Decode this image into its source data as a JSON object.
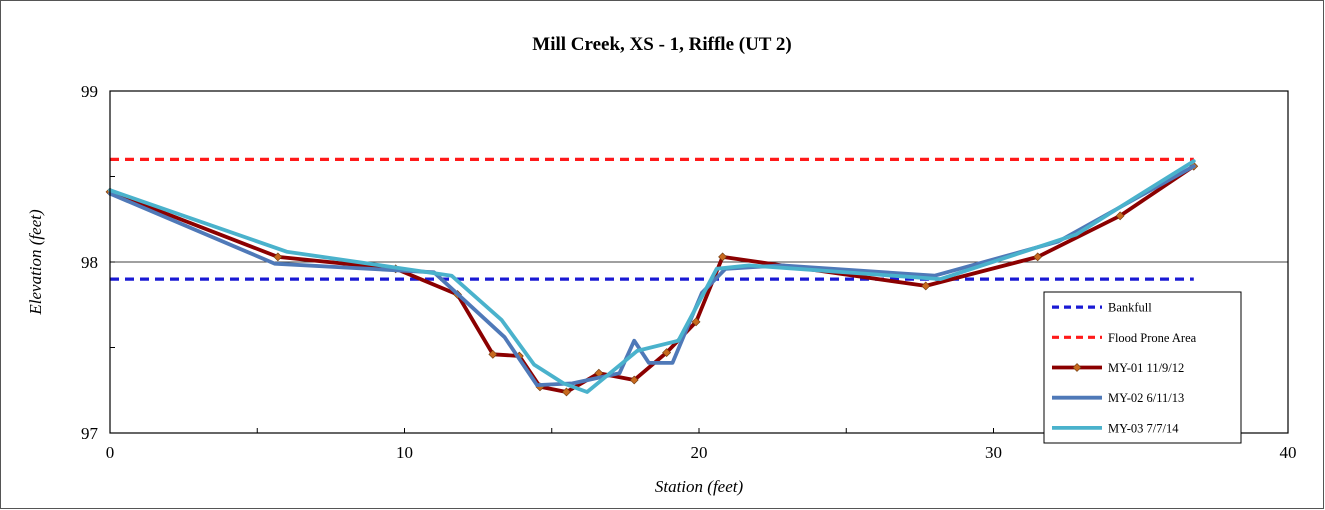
{
  "chart_data": {
    "type": "line",
    "title": "Mill Creek, XS - 1, Riffle (UT 2)",
    "xlabel": "Station (feet)",
    "ylabel": "Elevation (feet)",
    "xlim": [
      0,
      40
    ],
    "ylim": [
      97,
      99
    ],
    "x_ticks": [
      "0",
      "10",
      "20",
      "30",
      "40"
    ],
    "y_ticks": [
      "97",
      "98",
      "99"
    ],
    "grid": "horizontal major gridline at 98",
    "legend_position": "bottom-right",
    "series": [
      {
        "name": "Bankfull",
        "color": "#1a1ad4",
        "style": "dashed",
        "x": [
          0,
          36.8
        ],
        "y": [
          97.9,
          97.9
        ]
      },
      {
        "name": "Flood Prone Area",
        "color": "#ff1a1a",
        "style": "dashed",
        "x": [
          0,
          36.8
        ],
        "y": [
          98.6,
          98.6
        ]
      },
      {
        "name": "MY-01 11/9/12",
        "color": "#8b0000",
        "marker_color": "#c8691e",
        "style": "solid-marker",
        "x": [
          0,
          5.7,
          9.7,
          11.8,
          13.0,
          13.9,
          14.6,
          15.5,
          16.6,
          17.8,
          18.9,
          19.9,
          20.8,
          27.7,
          31.5,
          34.3,
          36.8
        ],
        "y": [
          98.41,
          98.03,
          97.96,
          97.81,
          97.46,
          97.45,
          97.27,
          97.24,
          97.35,
          97.31,
          97.47,
          97.65,
          98.03,
          97.86,
          98.03,
          98.27,
          98.56
        ]
      },
      {
        "name": "MY-02 6/11/13",
        "color": "#4f79b8",
        "style": "solid",
        "x": [
          0,
          5.6,
          11.0,
          13.4,
          14.5,
          15.7,
          17.3,
          17.8,
          18.3,
          19.1,
          20.1,
          20.9,
          22.8,
          28.0,
          32.2,
          36.8
        ],
        "y": [
          98.4,
          97.99,
          97.94,
          97.56,
          97.28,
          97.29,
          97.35,
          97.54,
          97.41,
          97.41,
          97.82,
          97.96,
          97.98,
          97.92,
          98.12,
          98.56
        ]
      },
      {
        "name": "MY-03 7/7/14",
        "color": "#4ab2cc",
        "style": "solid",
        "x": [
          0,
          6.0,
          11.6,
          13.3,
          14.4,
          15.4,
          16.2,
          17.9,
          19.3,
          20.6,
          21.7,
          28.2,
          32.8,
          36.8
        ],
        "y": [
          98.42,
          98.06,
          97.92,
          97.66,
          97.4,
          97.29,
          97.24,
          97.48,
          97.54,
          97.96,
          97.98,
          97.9,
          98.16,
          98.59
        ]
      }
    ]
  }
}
